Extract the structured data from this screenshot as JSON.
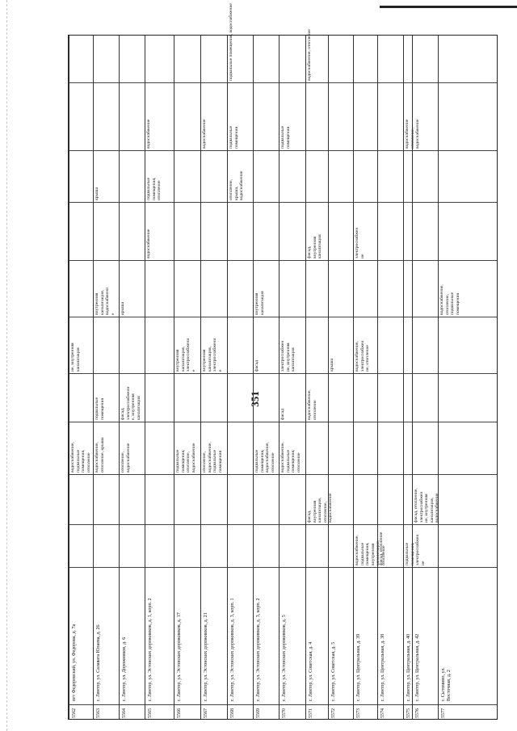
{
  "page": {
    "number": "351"
  },
  "rows": [
    {
      "num": "5562",
      "address": "пгт Федоровский, ул. Федорова, д. 7а",
      "cells": [
        "",
        "",
        "водоснабжение,\nподвальные\nпомещения,\nотопление",
        "",
        "ие, внутренняя\nканализация",
        "",
        "",
        "",
        "",
        ""
      ]
    },
    {
      "num": "5563",
      "address": "г. Лянтор, ул. Салавата Юлаева, д. 26",
      "cells": [
        "",
        "",
        "водоснабжение,\nотопление, крыша",
        "подвальные\nпомещения",
        "",
        "внутренняя\nканализация,\nводоснабжени\nе",
        "",
        "крыша",
        "",
        ""
      ]
    },
    {
      "num": "5564",
      "address": "г. Лянтор, ул. Дорожников, д. 6",
      "cells": [
        "",
        "",
        "отопление,\nводоснабжение",
        "фасад,\nэлектроснабжени\nе, внутренняя\nканализация",
        "",
        "крыша",
        "",
        "",
        "",
        ""
      ]
    },
    {
      "num": "5565",
      "address": "г. Лянтор, ул. Эстонских дорожников, д. 1, корп. 2",
      "cells": [
        "",
        "",
        "",
        "",
        "",
        "",
        "водоснабжение",
        "подвальные\nпомещения,\nотопление",
        "водоснабжение",
        ""
      ]
    },
    {
      "num": "5566",
      "address": "г. Лянтор, ул. Эстонских дорожников, д. 17",
      "cells": [
        "",
        "",
        "подвальные\nпомещения,\nотопление,\nводоснабжение",
        "",
        "внутренняя\nканализация,\nэлектроснабжени\nе",
        "",
        "",
        "",
        "",
        ""
      ]
    },
    {
      "num": "5567",
      "address": "г. Лянтор, ул. Эстонских дорожников, д. 21",
      "cells": [
        "",
        "",
        "отопление,\nводоснабжение,\nподвальные\nпомещения",
        "",
        "внутренняя\nканализация,\nэлектроснабжени\nе",
        "",
        "",
        "",
        "водоснабжение",
        ""
      ]
    },
    {
      "num": "5568",
      "address": "г. Лянтор, ул. Эстонских дорожников, д. 3, корп. 1",
      "cells": [
        "",
        "",
        "",
        "",
        "",
        "",
        "",
        "отопление,\nкрыша,\nводоснабжение",
        "подвальные\nпомещения",
        "подвальные помещения, водоснабжение"
      ]
    },
    {
      "num": "5569",
      "address": "г. Лянтор, ул. Эстонских дорожников, д. 3, корп. 2",
      "cells": [
        "",
        "",
        "подвальные\nпомещения,\nводоснабжение,\nотопление",
        "",
        "фасад",
        "внутренняя\nканализация",
        "",
        "",
        "",
        ""
      ]
    },
    {
      "num": "5570",
      "address": "г. Лянтор, ул. Эстонских дорожников, д. 5",
      "cells": [
        "",
        "",
        "водоснабжение,\nподвальные\nпомещения,\nотопление",
        "фасад",
        "электроснабжен\nие, внутренняя\nканализация",
        "",
        "",
        "",
        "подвальные\nпомещения",
        ""
      ]
    },
    {
      "num": "5571",
      "address": "г. Лянтор, ул. Советская, д. 4",
      "cells": [
        "",
        "фасад,\nвнутренняя\nканализация,\nотопление,\nводоснабжение",
        "",
        "водоснабжение,\nотопление",
        "",
        "",
        "фасад,\nвнутренняя\nканализация",
        "",
        "",
        "водоснабжение, отопление"
      ]
    },
    {
      "num": "5572",
      "address": "г. Лянтор, ул. Советская, д. 5",
      "cells": [
        "",
        "",
        "",
        "",
        "крыша",
        "",
        "",
        "",
        "",
        ""
      ]
    },
    {
      "num": "5573",
      "address": "г. Лянтор, ул. Центральная, д. 39",
      "cells": [
        "водоснабжение,\nподвальные\nпомещения,\nвнутренняя\nканализация,\nотопление",
        "",
        "",
        "",
        "водоснабжение,\nэлектроснабжен\nие, отопление",
        "",
        "электроснабжен\nие",
        "",
        "",
        ""
      ]
    },
    {
      "num": "5574",
      "address": "г. Лянтор, ул. Центральная, д. 38",
      "cells": [
        "фасад, отопление",
        "",
        "",
        "",
        "",
        "",
        "",
        "",
        "",
        ""
      ]
    },
    {
      "num": "5575",
      "address": "г. Лянтор, ул. Центральная, д. 40",
      "cells": [
        "подвальные\nпомещения,\nэлектроснабжен\nие",
        "",
        "",
        "",
        "",
        "",
        "",
        "",
        "водоснабжение\nотопление,\nводоснабжение",
        ""
      ]
    },
    {
      "num": "5576",
      "address": "г. Лянтор, ул. Центральная, д. 42",
      "cells": [
        "",
        "фасад, отопление,\nэлектроснабжен\nие, внутренняя\nканализация,\nводоснабжение",
        "",
        "",
        "",
        "",
        "",
        "",
        "",
        ""
      ]
    },
    {
      "num": "5577",
      "address": "г. Сытомино, ул. Восточная, д. 2",
      "cells": [
        "",
        "",
        "",
        "",
        "",
        "водоснабжение,\nотопление,\nподвальные\nпомещения",
        "",
        "",
        "",
        ""
      ]
    }
  ]
}
